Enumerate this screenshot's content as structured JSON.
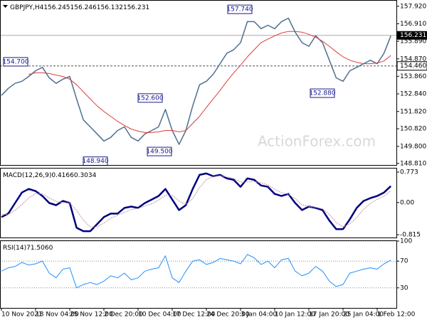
{
  "chart_data": [
    {
      "type": "line",
      "title": "GBPJPY,H4",
      "ohlc": [
        156.245,
        156.246,
        156.132,
        156.231
      ],
      "watermark": "ActionForex.com",
      "ylim": [
        148.72,
        158.24
      ],
      "yticks": [
        {
          "value": 157.92,
          "label": "157.920"
        },
        {
          "value": 156.91,
          "label": "156.910"
        },
        {
          "value": 155.89,
          "label": "155.890"
        },
        {
          "value": 154.87,
          "label": "154.870"
        },
        {
          "value": 153.86,
          "label": "153.860"
        },
        {
          "value": 152.84,
          "label": "152.840"
        },
        {
          "value": 151.82,
          "label": "151.820"
        },
        {
          "value": 150.82,
          "label": "150.820"
        },
        {
          "value": 149.8,
          "label": "149.800"
        },
        {
          "value": 148.81,
          "label": "148.810"
        }
      ],
      "last_price": 156.231,
      "level": {
        "value": 154.46,
        "label": "154.460"
      },
      "annotations": [
        {
          "value": 154.7,
          "label": "154.700"
        },
        {
          "value": 152.6,
          "label": "152.600"
        },
        {
          "value": 148.94,
          "label": "148.940"
        },
        {
          "value": 149.5,
          "label": "149.500"
        },
        {
          "value": 157.74,
          "label": "157.740"
        },
        {
          "value": 152.88,
          "label": "152.880"
        }
      ],
      "series": [
        {
          "color": "#4f6f8f",
          "values": [
            152.75,
            153.16,
            153.45,
            153.57,
            153.85,
            154.18,
            154.38,
            153.77,
            153.45,
            153.69,
            153.85,
            152.55,
            151.33,
            150.93,
            150.52,
            150.11,
            150.32,
            150.72,
            150.93,
            150.32,
            150.11,
            150.52,
            150.72,
            150.93,
            151.94,
            150.72,
            149.91,
            150.72,
            152.15,
            153.37,
            153.57,
            153.98,
            154.59,
            155.2,
            155.4,
            155.81,
            157.03,
            157.03,
            156.62,
            156.82,
            156.62,
            157.03,
            157.23,
            156.42,
            155.81,
            155.6,
            156.21,
            155.81,
            154.79,
            153.77,
            153.57,
            154.18,
            154.38,
            154.59,
            154.79,
            154.59,
            155.2,
            156.21
          ]
        },
        {
          "color": "#e03c3c",
          "values": [
            null,
            null,
            null,
            null,
            153.97,
            154.06,
            154.06,
            154.02,
            153.93,
            153.85,
            153.69,
            153.37,
            152.96,
            152.55,
            152.15,
            151.82,
            151.54,
            151.25,
            151.01,
            150.8,
            150.68,
            150.6,
            150.6,
            150.64,
            150.72,
            150.72,
            150.64,
            150.72,
            151.13,
            151.54,
            152.06,
            152.55,
            153.04,
            153.57,
            154.06,
            154.5,
            154.99,
            155.4,
            155.81,
            156.01,
            156.21,
            156.37,
            156.46,
            156.46,
            156.42,
            156.29,
            156.13,
            155.89,
            155.6,
            155.28,
            154.99,
            154.79,
            154.67,
            154.59,
            154.59,
            154.63,
            154.75,
            155.07
          ]
        }
      ]
    },
    {
      "type": "line",
      "title": "MACD(12,26,9)",
      "readings": [
        0.4166,
        0.3034
      ],
      "ylim": [
        -0.886,
        0.862
      ],
      "yticks": [
        0.773,
        {
          "value": 0,
          "label": "0.00"
        },
        -0.815
      ],
      "series": [
        {
          "color": "#000080",
          "values": [
            -0.369,
            -0.28,
            -0.012,
            0.255,
            0.344,
            0.291,
            0.166,
            -0.012,
            -0.066,
            0.041,
            -0.012,
            -0.637,
            -0.726,
            -0.726,
            -0.548,
            -0.369,
            -0.28,
            -0.28,
            -0.137,
            -0.102,
            -0.137,
            -0.012,
            0.077,
            0.166,
            0.344,
            0.077,
            -0.191,
            -0.066,
            0.344,
            0.701,
            0.737,
            0.665,
            0.701,
            0.612,
            0.576,
            0.398,
            0.612,
            0.576,
            0.434,
            0.398,
            0.219,
            0.166,
            0.219,
            -0.012,
            -0.191,
            -0.102,
            -0.137,
            -0.191,
            -0.458,
            -0.673,
            -0.673,
            -0.423,
            -0.137,
            0.041,
            0.112,
            0.166,
            0.255,
            0.417
          ]
        },
        {
          "color": "#c89a9a",
          "values": [
            -0.3,
            -0.3,
            -0.2,
            -0.05,
            0.12,
            0.22,
            0.22,
            0.12,
            0.03,
            0,
            -0.01,
            -0.2,
            -0.45,
            -0.62,
            -0.62,
            -0.52,
            -0.4,
            -0.32,
            -0.25,
            -0.18,
            -0.15,
            -0.09,
            -0.03,
            0.06,
            0.18,
            0.18,
            0.04,
            -0.05,
            0.1,
            0.38,
            0.58,
            0.66,
            0.68,
            0.65,
            0.61,
            0.52,
            0.52,
            0.54,
            0.5,
            0.45,
            0.34,
            0.25,
            0.21,
            0.1,
            -0.06,
            -0.1,
            -0.12,
            -0.16,
            -0.3,
            -0.5,
            -0.62,
            -0.54,
            -0.38,
            -0.17,
            -0.02,
            0.08,
            0.16,
            0.303
          ]
        }
      ]
    },
    {
      "type": "line",
      "title": "RSI(14)",
      "reading": {
        "value": 71.506,
        "label": "71.5060"
      },
      "ylim": [
        0,
        100
      ],
      "yticks": [
        100,
        70,
        30
      ],
      "categories": [
        "10 Nov 2021",
        null,
        null,
        null,
        null,
        "18 Nov 04:00",
        null,
        null,
        null,
        null,
        "25 Nov 12:00",
        null,
        null,
        null,
        null,
        "2 Dec 20:00",
        null,
        null,
        null,
        null,
        "10 Dec 04:00",
        null,
        null,
        null,
        null,
        "17 Dec 12:00",
        null,
        null,
        null,
        null,
        "24 Dec 20:00",
        null,
        null,
        null,
        null,
        "3 Jan 04:00",
        null,
        null,
        null,
        null,
        "10 Jan 12:00",
        null,
        null,
        null,
        null,
        "17 Jan 20:00",
        null,
        null,
        null,
        null,
        "25 Jan 04:00",
        null,
        null,
        null,
        null,
        "1 Feb 12:00",
        null,
        null
      ],
      "series": [
        {
          "color": "#1e90ff",
          "values": [
            55,
            60,
            62,
            68,
            64,
            66,
            70,
            52,
            45,
            58,
            60,
            30,
            35,
            38,
            35,
            40,
            48,
            45,
            52,
            42,
            45,
            55,
            58,
            60,
            78,
            45,
            38,
            55,
            70,
            72,
            65,
            68,
            74,
            72,
            70,
            66,
            80,
            75,
            65,
            70,
            60,
            72,
            74,
            55,
            48,
            52,
            62,
            55,
            40,
            32,
            35,
            52,
            55,
            58,
            60,
            58,
            66,
            71.5
          ]
        }
      ]
    }
  ]
}
